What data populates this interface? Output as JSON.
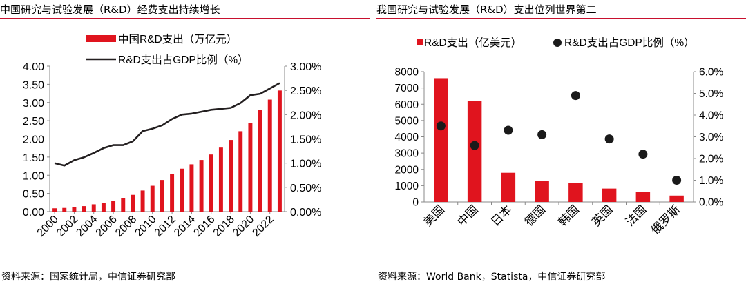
{
  "colors": {
    "bar": "#e0141e",
    "line": "#231f20",
    "dot": "#1a1a1a",
    "rule": "#c8102e"
  },
  "left": {
    "title": "中国研究与试验发展（R&D）经费支出持续增长",
    "source": "资料来源：国家统计局，中信证券研究部"
  },
  "right": {
    "title": "我国研究与试验发展（R&D）支出位列世界第二",
    "source": "资料来源：World Bank，Statista，中信证券研究部"
  },
  "chart_data": [
    {
      "type": "bar+line",
      "legend": [
        "中国R&D支出（万亿元）",
        "R&D支出占GDP比例（%）"
      ],
      "x": [
        2000,
        2001,
        2002,
        2003,
        2004,
        2005,
        2006,
        2007,
        2008,
        2009,
        2010,
        2011,
        2012,
        2013,
        2014,
        2015,
        2016,
        2017,
        2018,
        2019,
        2020,
        2021,
        2022,
        2023
      ],
      "x_tick_labels": [
        "2000",
        "2002",
        "2004",
        "2006",
        "2008",
        "2010",
        "2012",
        "2014",
        "2016",
        "2018",
        "2020",
        "2022"
      ],
      "series": [
        {
          "name": "中国R&D支出（万亿元）",
          "type": "bar",
          "axis": "left",
          "values": [
            0.09,
            0.1,
            0.13,
            0.15,
            0.2,
            0.24,
            0.3,
            0.37,
            0.46,
            0.58,
            0.71,
            0.87,
            1.03,
            1.18,
            1.3,
            1.42,
            1.57,
            1.76,
            1.97,
            2.21,
            2.44,
            2.8,
            3.08,
            3.33
          ]
        },
        {
          "name": "R&D支出占GDP比例（%）",
          "type": "line",
          "axis": "right",
          "values": [
            1.0,
            0.95,
            1.06,
            1.12,
            1.21,
            1.31,
            1.37,
            1.37,
            1.45,
            1.66,
            1.71,
            1.78,
            1.91,
            2.0,
            2.02,
            2.06,
            2.1,
            2.12,
            2.14,
            2.24,
            2.4,
            2.43,
            2.54,
            2.65
          ]
        }
      ],
      "y_left": {
        "min": 0,
        "max": 4,
        "ticks": [
          "0.00",
          "0.50",
          "1.00",
          "1.50",
          "2.00",
          "2.50",
          "3.00",
          "3.50",
          "4.00"
        ]
      },
      "y_right": {
        "min": 0,
        "max": 3,
        "ticks": [
          "0.00%",
          "0.50%",
          "1.00%",
          "1.50%",
          "2.00%",
          "2.50%",
          "3.00%"
        ]
      }
    },
    {
      "type": "bar+scatter",
      "legend": [
        "R&D支出（亿美元）",
        "R&D支出占GDP比例（%）"
      ],
      "categories": [
        "美国",
        "中国",
        "日本",
        "德国",
        "韩国",
        "英国",
        "法国",
        "俄罗斯"
      ],
      "series": [
        {
          "name": "R&D支出（亿美元）",
          "type": "bar",
          "axis": "left",
          "values": [
            7600,
            6180,
            1790,
            1280,
            1180,
            820,
            630,
            390
          ]
        },
        {
          "name": "R&D支出占GDP比例（%）",
          "type": "scatter",
          "axis": "right",
          "values": [
            3.5,
            2.6,
            3.3,
            3.1,
            4.9,
            2.9,
            2.2,
            1.0
          ]
        }
      ],
      "y_left": {
        "min": 0,
        "max": 8000,
        "ticks": [
          "0",
          "1000",
          "2000",
          "3000",
          "4000",
          "5000",
          "6000",
          "7000",
          "8000"
        ]
      },
      "y_right": {
        "min": 0,
        "max": 6,
        "ticks": [
          "0.0%",
          "1.0%",
          "2.0%",
          "3.0%",
          "4.0%",
          "5.0%",
          "6.0%"
        ]
      }
    }
  ]
}
